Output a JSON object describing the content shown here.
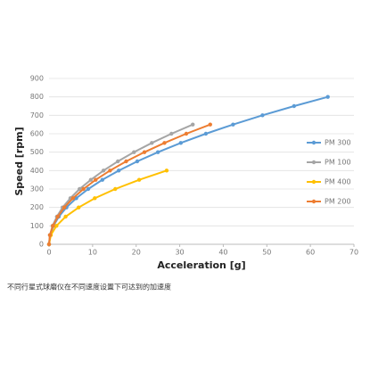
{
  "chart_data": {
    "type": "line",
    "y_label": "Speed [rpm]",
    "x_label": "Acceleration [g]",
    "caption": "不同行星式球磨仪在不同速度设置下可达到的加速度",
    "xlim": [
      0,
      70
    ],
    "xticks": [
      0,
      10,
      20,
      30,
      40,
      50,
      60,
      70
    ],
    "ylim": [
      0,
      900
    ],
    "yticks": [
      0,
      100,
      200,
      300,
      400,
      500,
      600,
      700,
      800,
      900
    ],
    "grid": true,
    "legend": "right",
    "series": [
      {
        "name": "PM 300",
        "color": "#5b9bd5",
        "x": [
          0,
          0.25,
          1,
          2.25,
          4,
          6.25,
          9,
          12.25,
          16,
          20.25,
          25,
          30.25,
          36,
          42.25,
          49,
          56.25,
          64
        ],
        "values": [
          0,
          50,
          100,
          150,
          200,
          250,
          300,
          350,
          400,
          450,
          500,
          550,
          600,
          650,
          700,
          750,
          800
        ]
      },
      {
        "name": "PM 100",
        "color": "#a5a5a5",
        "x": [
          0,
          0.2,
          0.8,
          1.8,
          3.1,
          4.9,
          7.0,
          9.6,
          12.5,
          15.8,
          19.5,
          23.6,
          28.1,
          33
        ],
        "values": [
          0,
          50,
          100,
          150,
          200,
          250,
          300,
          350,
          400,
          450,
          500,
          550,
          600,
          650
        ]
      },
      {
        "name": "PM 400",
        "color": "#ffc000",
        "x": [
          0,
          0.42,
          1.7,
          3.8,
          6.8,
          10.5,
          15.2,
          20.7,
          27.0
        ],
        "values": [
          0,
          50,
          100,
          150,
          200,
          250,
          300,
          350,
          400
        ]
      },
      {
        "name": "PM 200",
        "color": "#ed7d31",
        "x": [
          0,
          0.2,
          0.9,
          2.0,
          3.5,
          5.5,
          7.9,
          10.7,
          14.0,
          17.7,
          21.9,
          26.5,
          31.5,
          37.0
        ],
        "values": [
          0,
          50,
          100,
          150,
          200,
          250,
          300,
          350,
          400,
          450,
          500,
          550,
          600,
          650
        ]
      }
    ]
  }
}
